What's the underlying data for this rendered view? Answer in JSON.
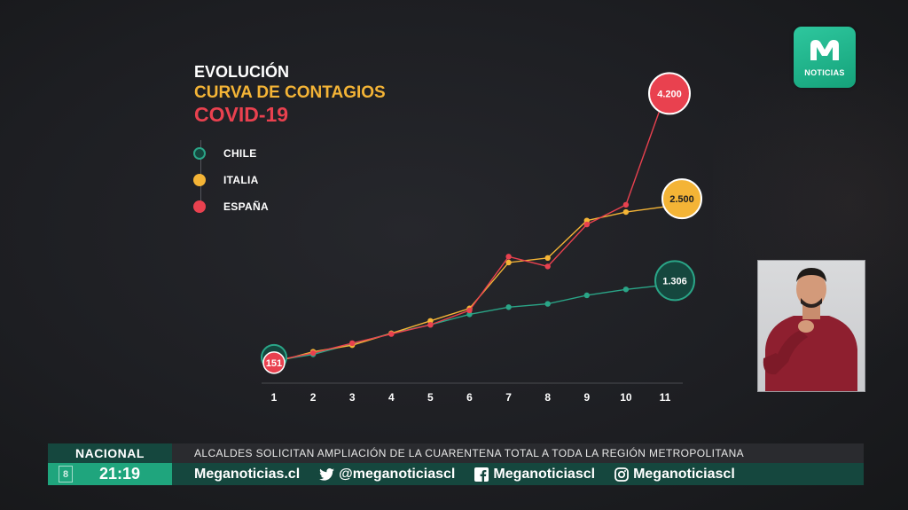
{
  "title": {
    "line1": "EVOLUCIÓN",
    "line2": "CURVA DE CONTAGIOS",
    "line3": "COVID-19"
  },
  "colors": {
    "chile": "#2aa587",
    "chile_fill": "#15473e",
    "italia": "#f4b436",
    "espana": "#e9414f",
    "accent_green": "#1fa57d"
  },
  "legend": [
    {
      "label": "CHILE",
      "series": "chile"
    },
    {
      "label": "ITALIA",
      "series": "italia"
    },
    {
      "label": "ESPAÑA",
      "series": "espana"
    }
  ],
  "chart_data": {
    "type": "line",
    "title": "CURVA DE CONTAGIOS",
    "x": [
      "1",
      "2",
      "3",
      "4",
      "5",
      "6",
      "7",
      "8",
      "9",
      "10",
      "11"
    ],
    "ylim": [
      0,
      4300
    ],
    "grid": false,
    "legend_position": "top-left",
    "series": [
      {
        "name": "CHILE",
        "key": "chile",
        "values": [
          151,
          250,
          410,
          570,
          700,
          860,
          970,
          1020,
          1150,
          1240,
          1306
        ],
        "end_label": "1.306"
      },
      {
        "name": "ITALIA",
        "key": "italia",
        "values": [
          130,
          290,
          390,
          570,
          760,
          950,
          1650,
          1720,
          2290,
          2420,
          2500
        ],
        "end_label": "2.500"
      },
      {
        "name": "ESPAÑA",
        "key": "espana",
        "values": [
          151,
          270,
          420,
          560,
          700,
          920,
          1740,
          1590,
          2230,
          2530,
          4200
        ],
        "end_label": "4.200"
      }
    ],
    "start_label": "151"
  },
  "logo": {
    "text": "NOTICIAS",
    "icon": "mega-m-logo-icon"
  },
  "ticker": {
    "section": "NACIONAL",
    "headline": "ALCALDES SOLICITAN AMPLIACIÓN  DE LA CUARENTENA TOTAL A TODA LA REGIÓN METROPOLITANA",
    "channel": "8",
    "time": "21:19",
    "website": "Meganoticias.cl",
    "twitter": "@meganoticiascl",
    "facebook": "Meganoticiascl",
    "instagram": "Meganoticiascl"
  }
}
